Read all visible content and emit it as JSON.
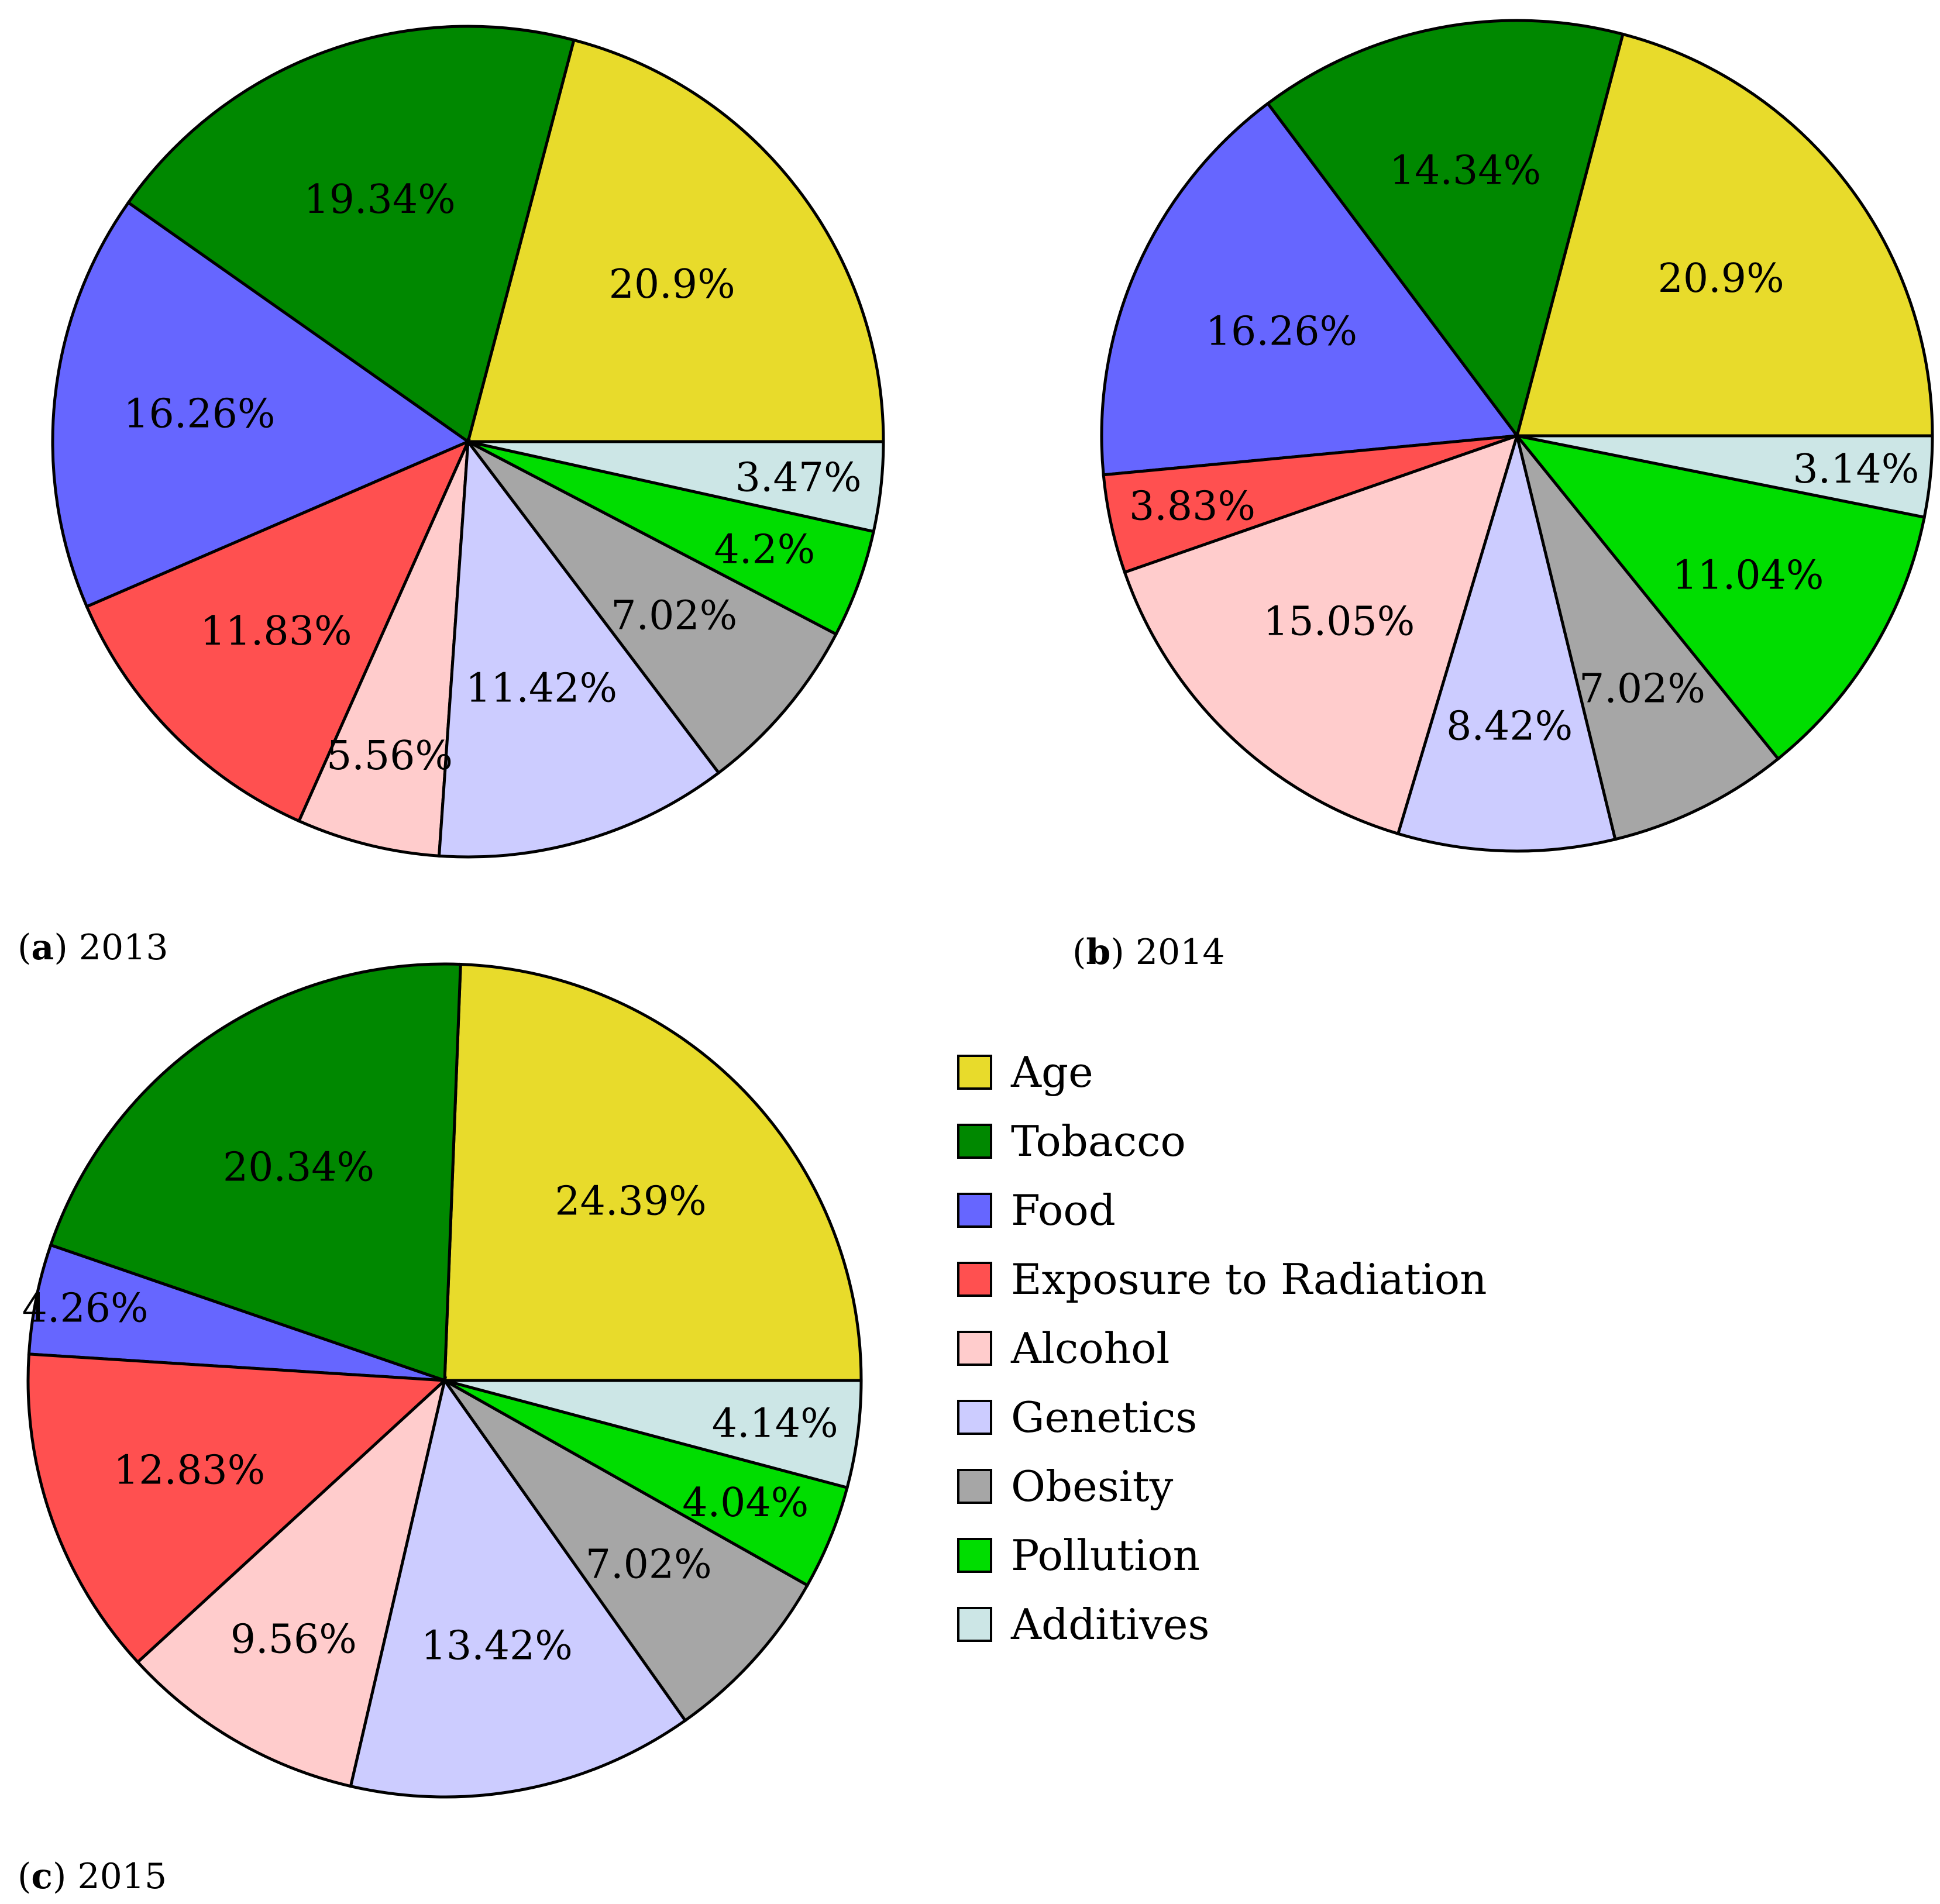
{
  "categories": [
    "Age",
    "Tobacco",
    "Food",
    "Exposure to Radiation",
    "Alcohol",
    "Genetics",
    "Obesity",
    "Pollution",
    "Additives"
  ],
  "colors": {
    "Age": "#E8DB2B",
    "Tobacco": "#008800",
    "Food": "#6666FF",
    "Exposure to Radiation": "#FF5050",
    "Alcohol": "#FFCCCC",
    "Genetics": "#CCCCFF",
    "Obesity": "#A6A6A6",
    "Pollution": "#00DD00",
    "Additives": "#CCE6E6"
  },
  "chart_data": [
    {
      "type": "pie",
      "panel_letter": "a",
      "panel_year": "2013",
      "slices": [
        {
          "name": "Age",
          "value": 20.9,
          "label": "20.9%"
        },
        {
          "name": "Tobacco",
          "value": 19.34,
          "label": "19.34%"
        },
        {
          "name": "Food",
          "value": 16.26,
          "label": "16.26%"
        },
        {
          "name": "Exposure to Radiation",
          "value": 11.83,
          "label": "11.83%"
        },
        {
          "name": "Alcohol",
          "value": 5.56,
          "label": "5.56%"
        },
        {
          "name": "Genetics",
          "value": 11.42,
          "label": "11.42%"
        },
        {
          "name": "Obesity",
          "value": 7.02,
          "label": "7.02%"
        },
        {
          "name": "Pollution",
          "value": 4.2,
          "label": "4.2%"
        },
        {
          "name": "Additives",
          "value": 3.47,
          "label": "3.47%"
        }
      ]
    },
    {
      "type": "pie",
      "panel_letter": "b",
      "panel_year": "2014",
      "slices": [
        {
          "name": "Age",
          "value": 20.9,
          "label": "20.9%"
        },
        {
          "name": "Tobacco",
          "value": 14.34,
          "label": "14.34%"
        },
        {
          "name": "Food",
          "value": 16.26,
          "label": "16.26%"
        },
        {
          "name": "Exposure to Radiation",
          "value": 3.83,
          "label": "3.83%"
        },
        {
          "name": "Alcohol",
          "value": 15.05,
          "label": "15.05%"
        },
        {
          "name": "Genetics",
          "value": 8.42,
          "label": "8.42%"
        },
        {
          "name": "Obesity",
          "value": 7.02,
          "label": "7.02%"
        },
        {
          "name": "Pollution",
          "value": 11.04,
          "label": "11.04%"
        },
        {
          "name": "Additives",
          "value": 3.14,
          "label": "3.14%"
        }
      ]
    },
    {
      "type": "pie",
      "panel_letter": "c",
      "panel_year": "2015",
      "slices": [
        {
          "name": "Age",
          "value": 24.39,
          "label": "24.39%"
        },
        {
          "name": "Tobacco",
          "value": 20.34,
          "label": "20.34%"
        },
        {
          "name": "Food",
          "value": 4.26,
          "label": "4.26%"
        },
        {
          "name": "Exposure to Radiation",
          "value": 12.83,
          "label": "12.83%"
        },
        {
          "name": "Alcohol",
          "value": 9.56,
          "label": "9.56%"
        },
        {
          "name": "Genetics",
          "value": 13.42,
          "label": "13.42%"
        },
        {
          "name": "Obesity",
          "value": 7.02,
          "label": "7.02%"
        },
        {
          "name": "Pollution",
          "value": 4.04,
          "label": "4.04%"
        },
        {
          "name": "Additives",
          "value": 4.14,
          "label": "4.14%"
        }
      ]
    }
  ],
  "legend": {
    "items": [
      "Age",
      "Tobacco",
      "Food",
      "Exposure to Radiation",
      "Alcohol",
      "Genetics",
      "Obesity",
      "Pollution",
      "Additives"
    ]
  }
}
